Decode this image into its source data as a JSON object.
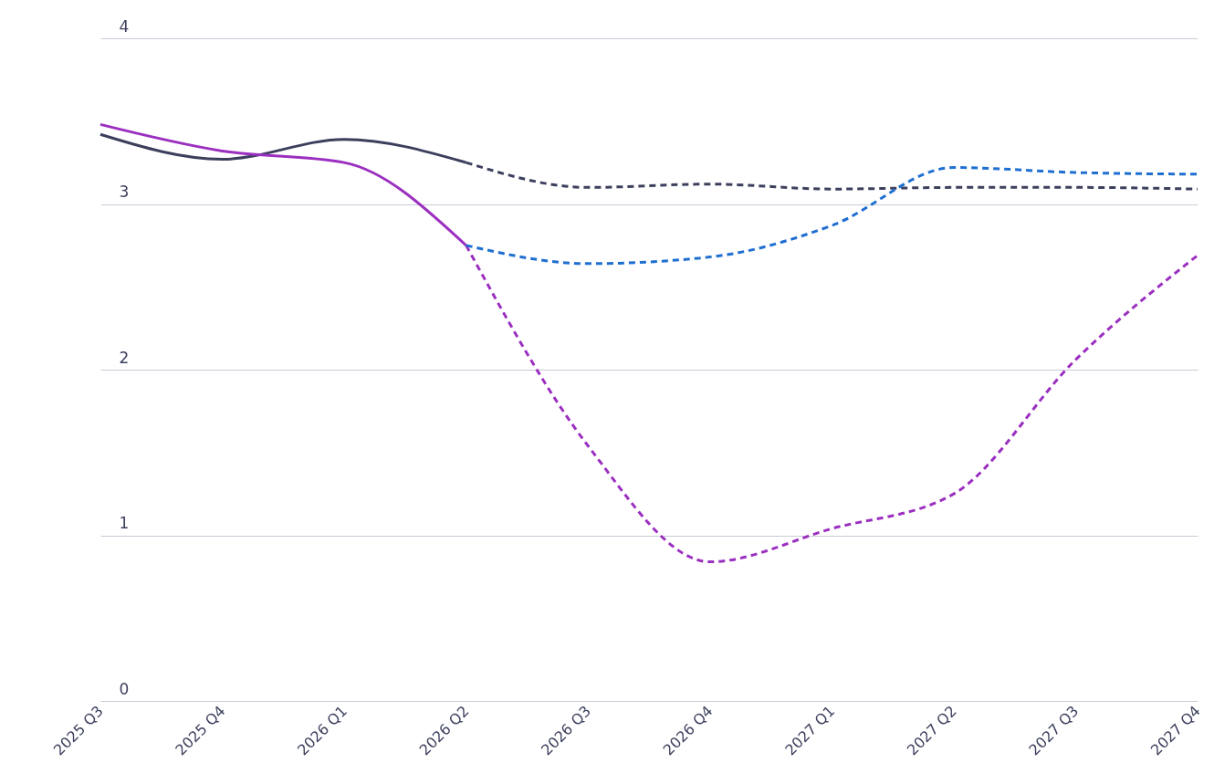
{
  "chart_data": {
    "type": "line",
    "categories": [
      "2025 Q3",
      "2025 Q4",
      "2026 Q1",
      "2026 Q2",
      "2026 Q3",
      "2026 Q4",
      "2027 Q1",
      "2027 Q2",
      "2027 Q3",
      "2027 Q4"
    ],
    "series": [
      {
        "color": "#3b3f5c",
        "line_style": "solid",
        "values": [
          3.42,
          3.27,
          3.39,
          3.25,
          null,
          null,
          null,
          null,
          null,
          null
        ]
      },
      {
        "color": "#3b3f5c",
        "line_style": "dashed",
        "values": [
          null,
          null,
          null,
          3.25,
          3.1,
          3.12,
          3.09,
          3.1,
          3.1,
          3.09
        ]
      },
      {
        "color": "#9b2fc0",
        "line_style": "solid",
        "values": [
          3.48,
          3.32,
          3.25,
          2.75,
          null,
          null,
          null,
          null,
          null,
          null
        ]
      },
      {
        "color": "#9b2fc0",
        "line_style": "dashed",
        "values": [
          null,
          null,
          null,
          2.75,
          1.54,
          0.84,
          1.04,
          1.25,
          2.06,
          2.69
        ]
      },
      {
        "color": "#1f6fd1",
        "line_style": "dashed",
        "values": [
          null,
          null,
          null,
          2.75,
          2.64,
          2.68,
          2.87,
          3.22,
          3.19,
          3.18
        ]
      }
    ],
    "ylim": [
      0,
      4
    ],
    "yticks": [
      0,
      1,
      2,
      3,
      4
    ],
    "grid": "y",
    "marker": "none"
  }
}
